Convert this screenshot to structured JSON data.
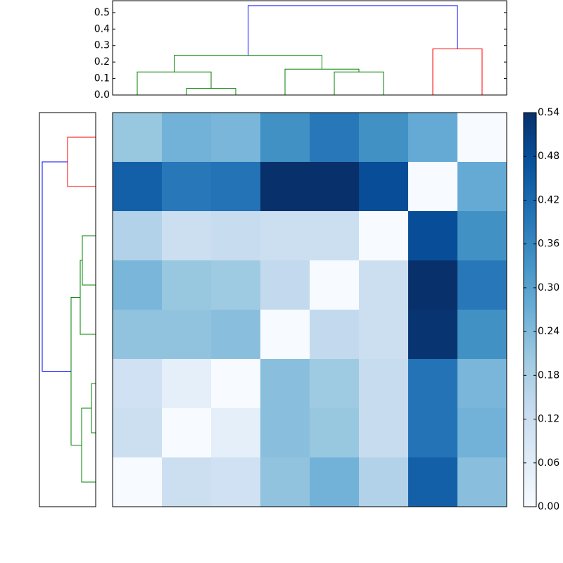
{
  "chart_data": {
    "type": "clustermap",
    "heatmap": {
      "values": [
        [
          0.21,
          0.26,
          0.25,
          0.34,
          0.39,
          0.34,
          0.28,
          0
        ],
        [
          0.44,
          0.39,
          0.4,
          0.54,
          0.54,
          0.48,
          0,
          0.28
        ],
        [
          0.17,
          0.12,
          0.13,
          0.12,
          0.12,
          0,
          0.48,
          0.34
        ],
        [
          0.25,
          0.21,
          0.2,
          0.14,
          0,
          0.12,
          0.54,
          0.39
        ],
        [
          0.22,
          0.22,
          0.23,
          0,
          0.14,
          0.12,
          0.53,
          0.34
        ],
        [
          0.11,
          0.05,
          0,
          0.23,
          0.2,
          0.13,
          0.4,
          0.25
        ],
        [
          0.12,
          0,
          0.05,
          0.23,
          0.21,
          0.13,
          0.4,
          0.26
        ],
        [
          0,
          0.12,
          0.11,
          0.22,
          0.26,
          0.17,
          0.44,
          0.23
        ]
      ],
      "vlim": [
        0,
        0.54
      ],
      "colormap": [
        "#f7fbff",
        "#deebf7",
        "#c6dbef",
        "#9ecae1",
        "#6baed6",
        "#4292c6",
        "#2171b5",
        "#08519c",
        "#08306b"
      ]
    },
    "colorbar": {
      "ticks": [
        {
          "value": 0,
          "label": "0.00"
        },
        {
          "value": 0.06,
          "label": "0.06"
        },
        {
          "value": 0.12,
          "label": "0.12"
        },
        {
          "value": 0.18,
          "label": "0.18"
        },
        {
          "value": 0.24,
          "label": "0.24"
        },
        {
          "value": 0.3,
          "label": "0.30"
        },
        {
          "value": 0.36,
          "label": "0.36"
        },
        {
          "value": 0.42,
          "label": "0.42"
        },
        {
          "value": 0.48,
          "label": "0.48"
        },
        {
          "value": 0.54,
          "label": "0.54"
        }
      ]
    },
    "top_dendrogram": {
      "xlim": [
        0,
        80
      ],
      "ylim": [
        0,
        0.572
      ],
      "yticks": [
        {
          "value": 0,
          "label": "0.0"
        },
        0.1,
        0.2,
        0.3,
        0.4,
        0.5
      ],
      "links": [
        {
          "positions": [
            15,
            15,
            25,
            25
          ],
          "heights": [
            0,
            0.04,
            0.04,
            0
          ],
          "color": "#008000"
        },
        {
          "positions": [
            5,
            5,
            20,
            20
          ],
          "heights": [
            0,
            0.14,
            0.14,
            0.04
          ],
          "color": "#008000"
        },
        {
          "positions": [
            45,
            45,
            55,
            55
          ],
          "heights": [
            0,
            0.14,
            0.14,
            0
          ],
          "color": "#008000"
        },
        {
          "positions": [
            35,
            35,
            50,
            50
          ],
          "heights": [
            0,
            0.157,
            0.157,
            0.14
          ],
          "color": "#008000"
        },
        {
          "positions": [
            12.5,
            12.5,
            42.5,
            42.5
          ],
          "heights": [
            0.14,
            0.24,
            0.24,
            0.157
          ],
          "color": "#008000"
        },
        {
          "positions": [
            65,
            65,
            75,
            75
          ],
          "heights": [
            0,
            0.28,
            0.28,
            0
          ],
          "color": "#ff0000"
        },
        {
          "positions": [
            27.5,
            27.5,
            70,
            70
          ],
          "heights": [
            0.24,
            0.542,
            0.542,
            0.28
          ],
          "color": "#0000ff"
        }
      ]
    },
    "left_dendrogram": {
      "ylim": [
        0,
        80
      ],
      "xlim": [
        0,
        0.8
      ],
      "links": [
        {
          "positions": [
            5,
            5,
            15,
            15
          ],
          "heights": [
            0,
            0.4,
            0.4,
            0
          ],
          "color": "#ff0000"
        },
        {
          "positions": [
            25,
            25,
            35,
            35
          ],
          "heights": [
            0,
            0.19,
            0.19,
            0
          ],
          "color": "#008000"
        },
        {
          "positions": [
            30,
            30,
            45,
            45
          ],
          "heights": [
            0.19,
            0.22,
            0.22,
            0
          ],
          "color": "#008000"
        },
        {
          "positions": [
            55,
            55,
            65,
            65
          ],
          "heights": [
            0,
            0.06,
            0.06,
            0
          ],
          "color": "#008000"
        },
        {
          "positions": [
            60,
            60,
            75,
            75
          ],
          "heights": [
            0.06,
            0.2,
            0.2,
            0
          ],
          "color": "#008000"
        },
        {
          "positions": [
            37.5,
            37.5,
            67.5,
            67.5
          ],
          "heights": [
            0.22,
            0.35,
            0.35,
            0.2
          ],
          "color": "#008000"
        },
        {
          "positions": [
            10,
            10,
            52.5,
            52.5
          ],
          "heights": [
            0.4,
            0.76,
            0.76,
            0.35
          ],
          "color": "#0000ff"
        }
      ]
    }
  }
}
